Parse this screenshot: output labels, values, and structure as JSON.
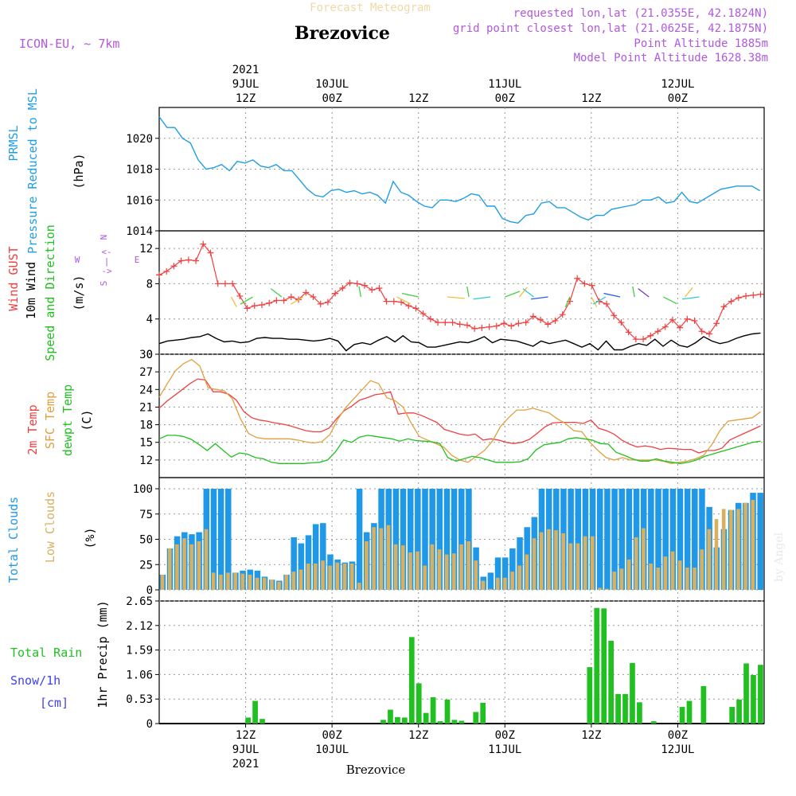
{
  "header": {
    "top_title": "Forecast Meteogram",
    "location": "Brezovice",
    "model": "ICON-EU, ~ 7km",
    "requested": "requested lon,lat (21.0355E, 42.1824N)",
    "grid_point": "grid point closest lon,lat (21.0625E, 42.1875N)",
    "point_alt": "Point Altitude 1885m",
    "model_alt": "Model Point Altitude 1628.38m",
    "footer": "Brezovice",
    "watermark": "by Angel"
  },
  "time_axis": {
    "top_labels": [
      {
        "h": 12,
        "lines": [
          "2021",
          "9JUL",
          "12Z"
        ]
      },
      {
        "h": 24,
        "lines": [
          "10JUL",
          "00Z"
        ]
      },
      {
        "h": 36,
        "lines": [
          "12Z"
        ]
      },
      {
        "h": 48,
        "lines": [
          "11JUL",
          "00Z"
        ]
      },
      {
        "h": 60,
        "lines": [
          "12Z"
        ]
      },
      {
        "h": 72,
        "lines": [
          "12JUL",
          "00Z"
        ]
      }
    ],
    "bottom_labels": [
      {
        "h": 12,
        "lines": [
          "12Z",
          "9JUL",
          "2021"
        ]
      },
      {
        "h": 24,
        "lines": [
          "00Z",
          "10JUL"
        ]
      },
      {
        "h": 36,
        "lines": [
          "12Z"
        ]
      },
      {
        "h": 48,
        "lines": [
          "00Z",
          "11JUL"
        ]
      },
      {
        "h": 60,
        "lines": [
          "12Z"
        ]
      },
      {
        "h": 72,
        "lines": [
          "00Z",
          "12JUL"
        ]
      }
    ]
  },
  "colors": {
    "pressure": "#1f9ee6",
    "gust": "#f04040",
    "wind10": "#000000",
    "dir_label": "#20c020",
    "temp": "#f04040",
    "sfc": "#e0a040",
    "dewpt": "#20c020",
    "total_cloud": "#2098e8",
    "low_cloud": "#d8b060",
    "rain": "#20c020",
    "snow": "#4040f0",
    "snow_unit": "#4040f0",
    "compass": "#b058e0"
  },
  "chart_data": [
    {
      "type": "line",
      "name": "pressure",
      "ylabel_lines": [
        "PRMSL",
        "Pressure Reduced to MSL",
        "(hPa)"
      ],
      "ylim": [
        1014,
        1022
      ],
      "yticks": [
        1014,
        1016,
        1018,
        1020
      ],
      "series": [
        {
          "name": "PRMSL",
          "values": [
            1021.4,
            1020.7,
            1020.7,
            1020.0,
            1019.7,
            1018.6,
            1018.0,
            1018.1,
            1018.3,
            1017.9,
            1018.5,
            1018.4,
            1018.6,
            1018.2,
            1018.1,
            1018.3,
            1017.9,
            1017.9,
            1017.3,
            1016.7,
            1016.3,
            1016.2,
            1016.6,
            1016.7,
            1016.5,
            1016.6,
            1016.4,
            1016.5,
            1016.3,
            1015.8,
            1017.2,
            1016.5,
            1016.3,
            1015.9,
            1015.6,
            1015.5,
            1016.0,
            1016.0,
            1015.9,
            1016.1,
            1016.4,
            1016.3,
            1015.6,
            1015.6,
            1014.8,
            1014.6,
            1014.5,
            1015.0,
            1015.1,
            1015.8,
            1015.9,
            1015.5,
            1015.5,
            1015.2,
            1014.9,
            1014.7,
            1015.0,
            1015.0,
            1015.4,
            1015.5,
            1015.6,
            1015.7,
            1016.0,
            1016.0,
            1016.2,
            1015.8,
            1015.9,
            1016.5,
            1015.9,
            1015.8,
            1016.1,
            1016.4,
            1016.7,
            1016.8,
            1016.9,
            1016.9,
            1016.9,
            1016.6
          ]
        }
      ]
    },
    {
      "type": "line",
      "name": "wind",
      "ylabel_lines": [
        "Wind GUST",
        "10m Wind",
        "Speed and Direction",
        "(m/s)"
      ],
      "compass": [
        "N",
        "<-",
        "|",
        "->",
        "S",
        "W",
        "E"
      ],
      "ylim": [
        0,
        14
      ],
      "yticks": [
        0,
        4,
        8,
        12
      ],
      "series": [
        {
          "name": "Wind GUST",
          "values": [
            9.0,
            9.4,
            10.0,
            10.6,
            10.7,
            10.6,
            12.5,
            11.5,
            8.0,
            8.0,
            8.0,
            6.6,
            5.2,
            5.5,
            5.6,
            5.8,
            6.1,
            6.1,
            6.5,
            6.2,
            7.0,
            6.5,
            5.7,
            5.9,
            6.9,
            7.5,
            8.1,
            8.0,
            7.8,
            7.3,
            7.5,
            6.0,
            6.0,
            5.9,
            5.5,
            5.2,
            4.6,
            4.0,
            3.6,
            3.6,
            3.6,
            3.4,
            3.3,
            2.9,
            3.0,
            3.1,
            3.2,
            3.5,
            3.2,
            3.5,
            3.6,
            4.3,
            3.9,
            3.4,
            3.8,
            4.5,
            6.0,
            8.6,
            8.0,
            7.8,
            6.0,
            5.7,
            4.4,
            3.6,
            2.5,
            1.7,
            1.7,
            2.1,
            2.6,
            3.1,
            3.9,
            3.0,
            4.0,
            3.8,
            2.6,
            2.3,
            3.5,
            5.4,
            6.0,
            6.4,
            6.6,
            6.7,
            6.8
          ]
        },
        {
          "name": "10m Wind",
          "values": [
            1.2,
            1.5,
            1.6,
            1.7,
            1.9,
            2.0,
            2.3,
            1.8,
            1.4,
            1.5,
            1.3,
            1.4,
            1.8,
            1.9,
            1.8,
            1.8,
            1.7,
            1.7,
            1.6,
            1.5,
            1.6,
            1.8,
            1.5,
            0.4,
            1.1,
            1.3,
            1.1,
            1.6,
            2.0,
            1.4,
            2.1,
            1.4,
            1.3,
            0.8,
            0.8,
            1.0,
            1.2,
            1.4,
            1.3,
            1.6,
            2.0,
            1.3,
            1.7,
            1.6,
            1.5,
            1.2,
            0.9,
            1.5,
            1.2,
            1.4,
            1.6,
            1.2,
            0.8,
            1.2,
            0.5,
            1.5,
            0.5,
            0.5,
            0.9,
            1.2,
            1.0,
            1.7,
            0.9,
            1.6,
            1.0,
            0.8,
            1.3,
            2.0,
            1.5,
            1.2,
            1.4,
            1.8,
            2.1,
            2.3,
            2.4
          ]
        }
      ],
      "arrows": [
        [
          10,
          9,
          "#f0c040"
        ],
        [
          13,
          7,
          "#40d040"
        ],
        [
          17,
          4,
          "#40d040"
        ],
        [
          20,
          7,
          "#f0c040"
        ],
        [
          28,
          3,
          "#40d040"
        ],
        [
          33,
          10,
          "#f0c040"
        ],
        [
          36,
          5,
          "#40d040"
        ],
        [
          40,
          11,
          "#f0c040"
        ],
        [
          43,
          3,
          "#40d040"
        ],
        [
          46,
          6,
          "#30c8d0"
        ],
        [
          48,
          1,
          "#40d040"
        ],
        [
          50,
          2,
          "#f0c040"
        ],
        [
          52,
          4,
          "#30c8d0"
        ],
        [
          54,
          6,
          "#2060f0"
        ],
        [
          57,
          8,
          "#40d040"
        ],
        [
          60,
          9,
          "#f0c040"
        ],
        [
          62,
          7,
          "#30c8d0"
        ],
        [
          64,
          5,
          "#2060f0"
        ],
        [
          66,
          3,
          "#40d040"
        ],
        [
          68,
          4,
          "#8030d0"
        ],
        [
          70,
          10,
          "#40d040"
        ],
        [
          73,
          2,
          "#f0c040"
        ],
        [
          75,
          6,
          "#30c8d0"
        ]
      ]
    },
    {
      "type": "line",
      "name": "temperature",
      "ylabel_lines": [
        "2m Temp",
        "SFC Temp",
        "dewpt Temp",
        "(C)"
      ],
      "ylim": [
        9,
        30
      ],
      "yticks": [
        12,
        15,
        18,
        21,
        24,
        27,
        30
      ],
      "series": [
        {
          "name": "2m Temp",
          "values": [
            20.8,
            22.0,
            23.0,
            24.0,
            25.0,
            25.8,
            25.6,
            23.6,
            23.6,
            23.2,
            22.2,
            20.2,
            19.2,
            18.8,
            18.6,
            18.3,
            18.1,
            17.8,
            17.4,
            17.0,
            16.8,
            16.8,
            17.4,
            19.0,
            20.4,
            21.2,
            22.2,
            22.6,
            23.1,
            23.3,
            23.6,
            19.8,
            20.0,
            20.0,
            19.6,
            19.0,
            18.4,
            17.2,
            16.8,
            16.4,
            16.2,
            16.4,
            15.4,
            15.6,
            15.4,
            15.0,
            14.8,
            15.0,
            15.5,
            16.5,
            17.6,
            18.3,
            18.4,
            18.4,
            18.4,
            18.2,
            18.8,
            17.4,
            17.0,
            16.4,
            15.4,
            14.7,
            14.2,
            14.4,
            14.2,
            13.8,
            14.0,
            13.9,
            13.8,
            13.8,
            13.2,
            13.6,
            13.6,
            14.0,
            15.4,
            16.0,
            16.6,
            17.2,
            17.8
          ]
        },
        {
          "name": "SFC Temp",
          "values": [
            22.7,
            25.0,
            27.2,
            28.4,
            29.1,
            28.0,
            24.3,
            24.0,
            23.8,
            22.4,
            19.0,
            16.5,
            15.8,
            15.6,
            15.6,
            15.6,
            15.6,
            15.4,
            15.1,
            14.9,
            15.1,
            16.3,
            19.0,
            21.0,
            22.5,
            24.0,
            25.5,
            25.0,
            22.6,
            22.1,
            21.0,
            18.3,
            16.0,
            15.4,
            14.8,
            14.2,
            12.8,
            12.0,
            11.6,
            12.6,
            13.6,
            15.2,
            17.7,
            19.2,
            20.5,
            20.5,
            20.8,
            20.4,
            20.0,
            19.0,
            18.2,
            17.0,
            16.8,
            15.0,
            13.6,
            12.4,
            12.0,
            12.4,
            12.0,
            12.0,
            12.0,
            12.0,
            11.8,
            11.4,
            11.6,
            11.8,
            12.2,
            12.8,
            14.6,
            17.0,
            18.6,
            18.8,
            19.0,
            19.2,
            20.2
          ]
        },
        {
          "name": "dewpt Temp",
          "values": [
            15.6,
            16.2,
            16.2,
            16.0,
            15.5,
            14.6,
            13.6,
            14.8,
            13.6,
            12.5,
            13.2,
            13.0,
            12.4,
            12.2,
            11.6,
            11.4,
            11.4,
            11.4,
            11.4,
            11.5,
            11.6,
            12.0,
            13.4,
            15.4,
            15.0,
            15.9,
            16.2,
            16.0,
            15.8,
            15.6,
            15.2,
            15.6,
            15.3,
            15.2,
            15.1,
            14.8,
            12.4,
            11.8,
            12.2,
            12.6,
            12.4,
            12.0,
            11.6,
            11.6,
            11.6,
            11.7,
            12.2,
            13.7,
            14.6,
            14.8,
            15.0,
            15.6,
            15.8,
            15.6,
            15.4,
            14.8,
            14.7,
            13.3,
            12.8,
            12.2,
            11.8,
            11.8,
            12.2,
            11.8,
            11.6,
            11.4,
            11.6,
            12.0,
            12.6,
            13.0,
            13.4,
            13.8,
            14.2,
            14.6,
            15.0,
            15.2
          ]
        }
      ]
    },
    {
      "type": "bar",
      "name": "clouds",
      "ylabel_lines": [
        "Total Clouds",
        "Low Clouds",
        "(%)"
      ],
      "ylim": [
        0,
        100
      ],
      "yticks": [
        0,
        25,
        50,
        75,
        100
      ],
      "series": [
        {
          "name": "Total Clouds",
          "values": [
            15,
            41,
            53,
            57,
            55,
            57,
            100,
            100,
            100,
            100,
            17,
            19,
            20,
            19,
            13,
            10,
            9,
            15,
            52,
            46,
            54,
            65,
            66,
            35,
            30,
            27,
            28,
            100,
            57,
            66,
            100,
            100,
            100,
            100,
            100,
            100,
            100,
            100,
            100,
            100,
            100,
            100,
            100,
            42,
            13,
            17,
            32,
            32,
            41,
            52,
            62,
            72,
            100,
            100,
            100,
            100,
            100,
            100,
            100,
            100,
            100,
            100,
            100,
            100,
            100,
            100,
            100,
            100,
            100,
            100,
            100,
            100,
            100,
            100,
            100,
            82,
            42,
            60,
            79,
            86,
            86,
            96,
            96
          ]
        },
        {
          "name": "Low Clouds",
          "values": [
            15,
            41,
            45,
            51,
            45,
            48,
            60,
            17,
            15,
            17,
            17,
            16,
            15,
            12,
            12,
            10,
            8,
            15,
            18,
            20,
            26,
            26,
            29,
            24,
            27,
            26,
            26,
            7,
            48,
            62,
            61,
            64,
            45,
            44,
            37,
            38,
            24,
            45,
            40,
            35,
            36,
            45,
            48,
            29,
            9,
            1,
            12,
            12,
            18,
            24,
            35,
            51,
            57,
            60,
            59,
            56,
            46,
            46,
            53,
            53,
            2,
            1,
            18,
            21,
            30,
            52,
            61,
            26,
            22,
            33,
            38,
            29,
            22,
            22,
            40,
            60,
            70,
            80,
            79,
            80,
            86,
            89
          ]
        }
      ]
    },
    {
      "type": "bar",
      "name": "precipitation",
      "ylabel_lines": [
        "Total Rain",
        "Snow/1h",
        "[cm]",
        "1hr Precip (mm)"
      ],
      "ylim": [
        0,
        2.65
      ],
      "yticks": [
        0,
        0.53,
        1.06,
        1.59,
        2.12,
        2.65
      ],
      "ytick_labels": [
        "0",
        "0.53",
        "1.06",
        "1.59",
        "2.12",
        "2.65"
      ],
      "series": [
        {
          "name": "Total Rain",
          "bars": [
            [
              12,
              0.13
            ],
            [
              13,
              0.49
            ],
            [
              14,
              0.1
            ],
            [
              31,
              0.08
            ],
            [
              32,
              0.3
            ],
            [
              33,
              0.14
            ],
            [
              34,
              0.13
            ],
            [
              35,
              1.87
            ],
            [
              36,
              0.87
            ],
            [
              37,
              0.23
            ],
            [
              38,
              0.57
            ],
            [
              39,
              0.05
            ],
            [
              40,
              0.52
            ],
            [
              41,
              0.08
            ],
            [
              42,
              0.06
            ],
            [
              44,
              0.25
            ],
            [
              45,
              0.45
            ],
            [
              60,
              1.22
            ],
            [
              61,
              2.5
            ],
            [
              62,
              2.49
            ],
            [
              63,
              1.79
            ],
            [
              64,
              0.64
            ],
            [
              65,
              0.64
            ],
            [
              66,
              1.31
            ],
            [
              67,
              0.46
            ],
            [
              69,
              0.05
            ],
            [
              73,
              0.36
            ],
            [
              74,
              0.49
            ],
            [
              76,
              0.81
            ],
            [
              80,
              0.36
            ],
            [
              81,
              0.52
            ],
            [
              82,
              1.3
            ],
            [
              83,
              1.05
            ],
            [
              84,
              1.27
            ]
          ]
        }
      ]
    }
  ]
}
